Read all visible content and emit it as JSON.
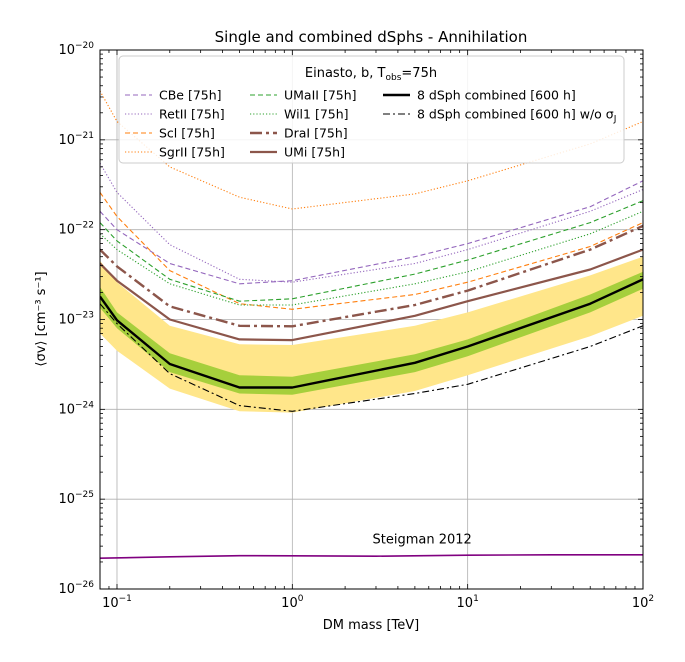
{
  "chart_data": {
    "type": "line",
    "title": "Single and combined dSphs - Annihilation",
    "xlabel": "DM mass [TeV]",
    "ylabel": "⟨σv⟩ [cm⁻³ s⁻¹]",
    "xscale": "log",
    "yscale": "log",
    "xlim": [
      0.08,
      100
    ],
    "ylim": [
      1e-26,
      1e-20
    ],
    "grid": true,
    "x_ticks": [
      {
        "value": 0.1,
        "base": "10",
        "exp": "−1"
      },
      {
        "value": 1,
        "base": "10",
        "exp": "0"
      },
      {
        "value": 10,
        "base": "10",
        "exp": "1"
      },
      {
        "value": 100,
        "base": "10",
        "exp": "2"
      }
    ],
    "y_ticks": [
      {
        "value": 1e-26,
        "base": "10",
        "exp": "−26"
      },
      {
        "value": 1e-25,
        "base": "10",
        "exp": "−25"
      },
      {
        "value": 1e-24,
        "base": "10",
        "exp": "−24"
      },
      {
        "value": 1e-23,
        "base": "10",
        "exp": "−23"
      },
      {
        "value": 1e-22,
        "base": "10",
        "exp": "−22"
      },
      {
        "value": 1e-21,
        "base": "10",
        "exp": "−21"
      },
      {
        "value": 1e-20,
        "base": "10",
        "exp": "−20"
      }
    ],
    "legend": {
      "title_main": "Einasto, b",
      "title_bbar": "b̄",
      "title_sep": ", T",
      "title_sub": "obs",
      "title_end": "=75h",
      "placement": "top",
      "columns": 3
    },
    "bands": [
      {
        "name": "95% containment",
        "color": "#ffe68a",
        "x": [
          0.08,
          0.1,
          0.2,
          0.5,
          1,
          5,
          10,
          50,
          100
        ],
        "low": [
          7e-24,
          4.5e-24,
          1.7e-24,
          9.5e-25,
          9.2e-25,
          1.6e-24,
          2.4e-24,
          6.5e-24,
          1.1e-23
        ],
        "high": [
          4.5e-23,
          2.6e-23,
          8.5e-24,
          5.3e-24,
          5.2e-24,
          8.5e-24,
          1.2e-23,
          3.1e-23,
          5e-23
        ]
      },
      {
        "name": "68% containment",
        "color": "#a6cf3c",
        "x": [
          0.08,
          0.1,
          0.2,
          0.5,
          1,
          5,
          10,
          50,
          100
        ],
        "low": [
          1.35e-23,
          8e-24,
          2.6e-24,
          1.5e-24,
          1.45e-24,
          2.6e-24,
          3.9e-24,
          1.2e-23,
          2.2e-23
        ],
        "high": [
          2.3e-23,
          1.2e-23,
          4.2e-24,
          2.4e-24,
          2.3e-24,
          4.1e-24,
          6e-24,
          1.9e-23,
          3.4e-23
        ]
      }
    ],
    "series": [
      {
        "name": "CBe [75h]",
        "color": "#9467bd",
        "dash": "5,3",
        "width": 1.1,
        "x": [
          0.08,
          0.1,
          0.2,
          0.5,
          1,
          5,
          10,
          50,
          100
        ],
        "y": [
          1.6e-22,
          1e-22,
          4.2e-23,
          2.5e-23,
          2.7e-23,
          5e-23,
          7e-23,
          1.8e-22,
          3.5e-22
        ]
      },
      {
        "name": "RetII [75h]",
        "color": "#9467bd",
        "dash": "1.2,2",
        "width": 1.1,
        "x": [
          0.08,
          0.1,
          0.2,
          0.5,
          1,
          5,
          10,
          50,
          100
        ],
        "y": [
          5.5e-22,
          2.6e-22,
          6.8e-23,
          2.8e-23,
          2.6e-23,
          4.2e-23,
          6e-23,
          1.6e-22,
          2.8e-22
        ]
      },
      {
        "name": "Scl [75h]",
        "color": "#ff7f0e",
        "dash": "5,3",
        "width": 1.1,
        "x": [
          0.08,
          0.1,
          0.2,
          0.5,
          1,
          5,
          10,
          50,
          100
        ],
        "y": [
          2.6e-22,
          1.4e-22,
          3.5e-23,
          1.5e-23,
          1.3e-23,
          1.9e-23,
          2.6e-23,
          6.5e-23,
          1.2e-22
        ]
      },
      {
        "name": "SgrII [75h]",
        "color": "#ff7f0e",
        "dash": "1.2,2",
        "width": 1.1,
        "x": [
          0.08,
          0.1,
          0.2,
          0.5,
          1,
          5,
          10,
          50,
          100
        ],
        "y": [
          3.5e-21,
          1.6e-21,
          5e-22,
          2.3e-22,
          1.7e-22,
          2.5e-22,
          3.5e-22,
          9e-22,
          1.6e-21
        ]
      },
      {
        "name": "UMaII [75h]",
        "color": "#2ca02c",
        "dash": "5,3",
        "width": 1.1,
        "x": [
          0.08,
          0.1,
          0.2,
          0.5,
          1,
          5,
          10,
          50,
          100
        ],
        "y": [
          1.2e-22,
          7.5e-23,
          2.8e-23,
          1.6e-23,
          1.7e-23,
          3.2e-23,
          4.6e-23,
          1.2e-22,
          2.1e-22
        ]
      },
      {
        "name": "Wil1 [75h]",
        "color": "#2ca02c",
        "dash": "1.2,2",
        "width": 1.1,
        "x": [
          0.08,
          0.1,
          0.2,
          0.5,
          1,
          5,
          10,
          50,
          100
        ],
        "y": [
          9e-23,
          6e-23,
          2.5e-23,
          1.45e-23,
          1.45e-23,
          2.5e-23,
          3.4e-23,
          9e-23,
          1.6e-22
        ]
      },
      {
        "name": "DraI [75h]",
        "color": "#8c564b",
        "dash": "12,4,3,4",
        "width": 2.4,
        "x": [
          0.08,
          0.1,
          0.2,
          0.5,
          1,
          5,
          10,
          50,
          100
        ],
        "y": [
          6e-23,
          3.9e-23,
          1.4e-23,
          8.5e-24,
          8.4e-24,
          1.45e-23,
          2.1e-23,
          6e-23,
          1.1e-22
        ]
      },
      {
        "name": "UMi [75h]",
        "color": "#8c564b",
        "dash": "",
        "width": 2.2,
        "x": [
          0.08,
          0.1,
          0.2,
          0.5,
          1,
          5,
          10,
          50,
          100
        ],
        "y": [
          4.2e-23,
          2.7e-23,
          1e-23,
          6e-24,
          5.9e-24,
          1.1e-23,
          1.6e-23,
          3.6e-23,
          6e-23
        ]
      },
      {
        "name": "8 dSph combined [600 h]",
        "color": "#000000",
        "dash": "",
        "width": 2.4,
        "x": [
          0.08,
          0.1,
          0.2,
          0.5,
          1,
          5,
          10,
          50,
          100
        ],
        "y": [
          1.8e-23,
          9.8e-24,
          3.2e-24,
          1.75e-24,
          1.75e-24,
          3.3e-24,
          5e-24,
          1.5e-23,
          2.8e-23
        ]
      },
      {
        "name": "8 dSph combined [600 h] w/o σ_J",
        "label_main": "8 dSph combined [600 h] w/o σ",
        "label_sub": "J",
        "color": "#000000",
        "dash": "7,3,2,3",
        "width": 1.1,
        "x": [
          0.08,
          0.1,
          0.2,
          0.5,
          1,
          5,
          10,
          50,
          100
        ],
        "y": [
          1.5e-23,
          9e-24,
          2.5e-24,
          1.1e-24,
          9.5e-25,
          1.5e-24,
          1.9e-24,
          5e-24,
          8.5e-24
        ]
      },
      {
        "name": "Steigman 2012",
        "color": "#800080",
        "dash": "",
        "width": 1.6,
        "in_legend": false,
        "x": [
          0.08,
          0.2,
          0.5,
          1,
          3,
          10,
          30,
          100
        ],
        "y": [
          2.2e-26,
          2.28e-26,
          2.35e-26,
          2.34e-26,
          2.32e-26,
          2.38e-26,
          2.4e-26,
          2.4e-26
        ]
      }
    ],
    "annotations": [
      {
        "text": "Steigman 2012",
        "x": 5.5,
        "y": 3.2e-26
      }
    ]
  }
}
